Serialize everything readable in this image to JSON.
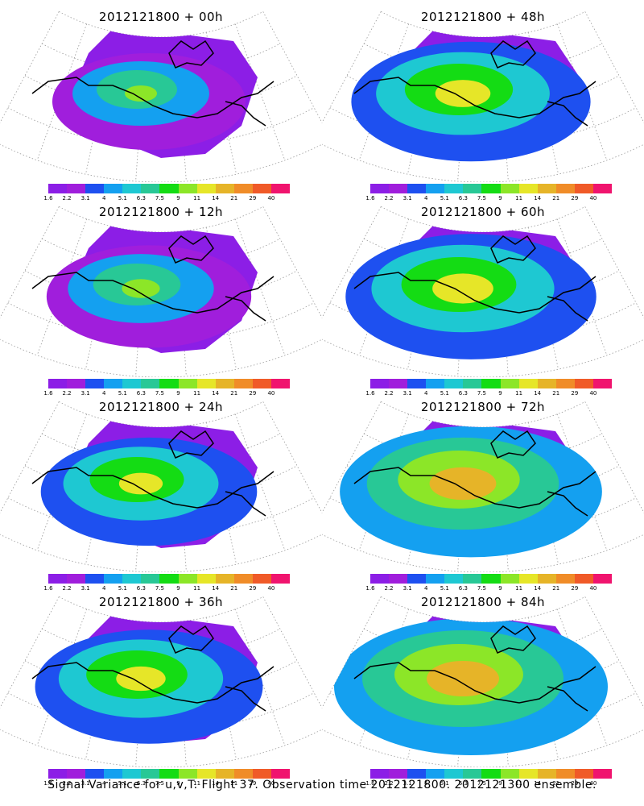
{
  "caption": "Signal Variance for u,v,T. Flight 37. Observation time 2012121800. 2012121300 ensemble.",
  "chart_data": {
    "type": "heatmap",
    "legend_levels": [
      "1.6",
      "2.2",
      "3.1",
      "4",
      "5.1",
      "6.3",
      "7.5",
      "9",
      "11",
      "14",
      "21",
      "29",
      "40"
    ],
    "legend_colors": [
      "#8c1ee6",
      "#a01edc",
      "#1e50f0",
      "#14a0f0",
      "#1ec8d2",
      "#28c896",
      "#14dc14",
      "#8ce628",
      "#e6e628",
      "#e6b428",
      "#f08c28",
      "#f05a28",
      "#f0146e"
    ],
    "panels": [
      {
        "title": "2012121800 + 00h",
        "lead_hours": 0
      },
      {
        "title": "2012121800 + 48h",
        "lead_hours": 48
      },
      {
        "title": "2012121800 + 12h",
        "lead_hours": 12
      },
      {
        "title": "2012121800 + 60h",
        "lead_hours": 60
      },
      {
        "title": "2012121800 + 24h",
        "lead_hours": 24
      },
      {
        "title": "2012121800 + 72h",
        "lead_hours": 72
      },
      {
        "title": "2012121800 + 36h",
        "lead_hours": 36
      },
      {
        "title": "2012121800 + 84h",
        "lead_hours": 84
      }
    ]
  }
}
